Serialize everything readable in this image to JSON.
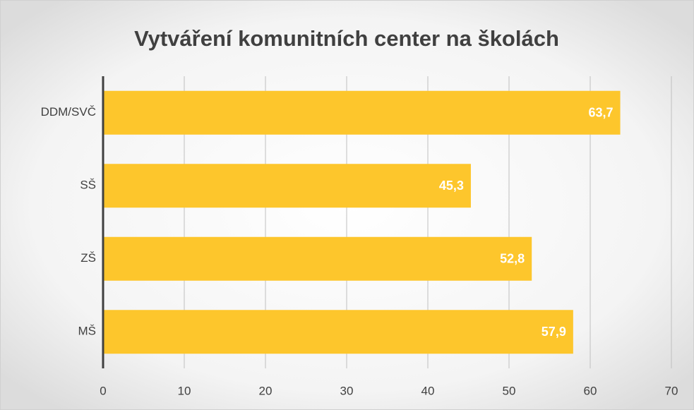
{
  "chart_data": {
    "type": "barh",
    "title": "Vytváření komunitních center na školách",
    "categories": [
      "DDM/SVČ",
      "SŠ",
      "ZŠ",
      "MŠ"
    ],
    "values": [
      63.7,
      45.3,
      52.8,
      57.9
    ],
    "value_labels": [
      "63,7",
      "45,3",
      "52,8",
      "57,9"
    ],
    "color": "#fdc62c",
    "xlim": [
      0,
      70
    ],
    "xticks": [
      0,
      10,
      20,
      30,
      40,
      50,
      60,
      70
    ],
    "grid": true
  }
}
